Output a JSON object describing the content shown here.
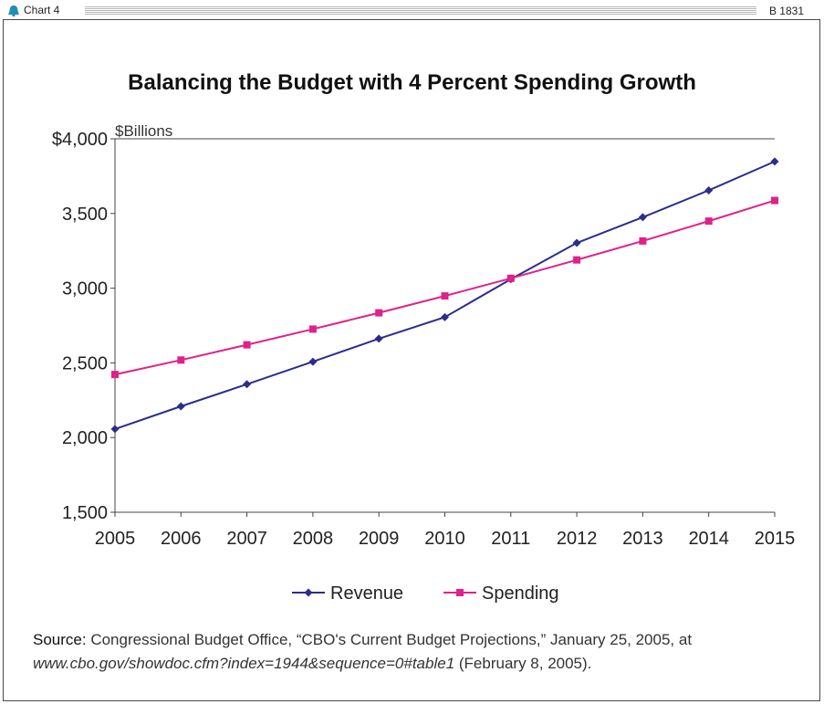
{
  "header": {
    "chart_label": "Chart 4",
    "doc_id": "B 1831"
  },
  "chart_data": {
    "type": "line",
    "title": "Balancing the Budget with 4 Percent Spending Growth",
    "unit_label": "$Billions",
    "x": [
      2005,
      2006,
      2007,
      2008,
      2009,
      2010,
      2011,
      2012,
      2013,
      2014,
      2015
    ],
    "xticks": [
      "2005",
      "2006",
      "2007",
      "2008",
      "2009",
      "2010",
      "2011",
      "2012",
      "2013",
      "2014",
      "2015"
    ],
    "yticks": [
      "1,500",
      "2,000",
      "2,500",
      "3,000",
      "3,500",
      "$4,000"
    ],
    "ylim": [
      1500,
      4000
    ],
    "grid": false,
    "legend": "bottom",
    "series": [
      {
        "name": "Revenue",
        "color": "#2b2d8e",
        "marker": "diamond",
        "values": [
          2057,
          2209,
          2357,
          2508,
          2662,
          2806,
          3060,
          3303,
          3475,
          3655,
          3848
        ]
      },
      {
        "name": "Spending",
        "color": "#e0218a",
        "marker": "square",
        "values": [
          2422,
          2519,
          2621,
          2726,
          2835,
          2948,
          3066,
          3189,
          3316,
          3449,
          3587
        ]
      }
    ]
  },
  "source": {
    "label": "Source:",
    "text": " Congressional Budget Office, “CBO's Current Budget Projections,” January 25, 2005, at ",
    "url": "www.cbo.gov/showdoc.cfm?index=1944&sequence=0#table1",
    "tail": "  (February 8, 2005)."
  }
}
